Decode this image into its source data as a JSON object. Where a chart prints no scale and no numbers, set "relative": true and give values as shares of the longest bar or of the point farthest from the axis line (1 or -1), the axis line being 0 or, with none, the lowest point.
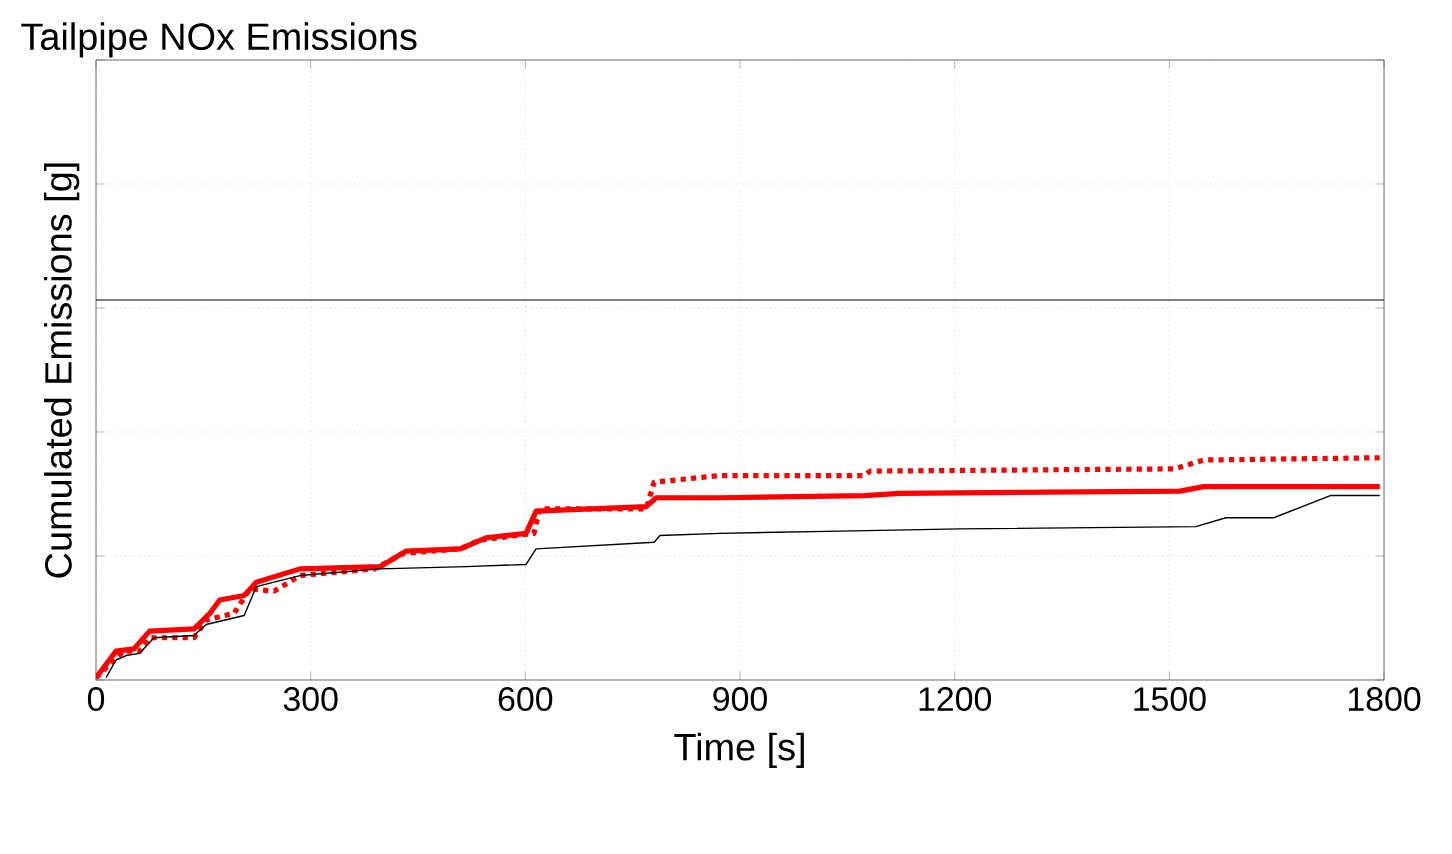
{
  "chart_data": {
    "type": "line",
    "title": "Tailpipe NOx Emissions",
    "xlabel": "Time [s]",
    "ylabel": "Cumulated Emissions [g]",
    "relative": true,
    "xlim": [
      0,
      1800
    ],
    "xticks": [
      0,
      300,
      600,
      900,
      1200,
      1500,
      1800
    ],
    "grid": true,
    "marker": "none",
    "series": [
      {
        "color": "#ff0000",
        "line_style": "solid",
        "x": [
          0,
          28,
          53,
          75,
          137,
          159,
          173,
          207,
          224,
          285,
          397,
          433,
          509,
          545,
          601,
          615,
          769,
          783,
          872,
          1073,
          1124,
          1515,
          1548,
          1683,
          1794
        ],
        "values": [
          0.01,
          0.13,
          0.14,
          0.22,
          0.23,
          0.3,
          0.36,
          0.38,
          0.44,
          0.5,
          0.51,
          0.58,
          0.59,
          0.64,
          0.66,
          0.76,
          0.78,
          0.82,
          0.82,
          0.83,
          0.84,
          0.85,
          0.87,
          0.87,
          0.87
        ]
      },
      {
        "color": "#ff0000",
        "line_style": "dotted",
        "x": [
          0,
          25,
          39,
          61,
          75,
          137,
          154,
          193,
          215,
          249,
          285,
          389,
          430,
          509,
          537,
          612,
          620,
          769,
          780,
          872,
          1073,
          1082,
          1507,
          1548,
          1794
        ],
        "values": [
          0.01,
          0.09,
          0.13,
          0.13,
          0.19,
          0.19,
          0.27,
          0.3,
          0.41,
          0.4,
          0.47,
          0.5,
          0.57,
          0.59,
          0.63,
          0.66,
          0.77,
          0.77,
          0.89,
          0.92,
          0.92,
          0.94,
          0.95,
          0.99,
          1
        ]
      },
      {
        "color": "#000000",
        "line_style": "solid",
        "x": [
          14,
          28,
          42,
          61,
          81,
          137,
          154,
          207,
          224,
          285,
          397,
          517,
          601,
          615,
          780,
          788,
          872,
          1040,
          1207,
          1537,
          1579,
          1646,
          1725,
          1794
        ],
        "values": [
          0.01,
          0.09,
          0.11,
          0.12,
          0.19,
          0.2,
          0.25,
          0.29,
          0.42,
          0.47,
          0.5,
          0.51,
          0.52,
          0.59,
          0.62,
          0.65,
          0.66,
          0.67,
          0.68,
          0.69,
          0.73,
          0.73,
          0.83,
          0.83
        ]
      }
    ],
    "ref_lines": [
      {
        "axis": "y",
        "value": 1.71,
        "color": "#000000"
      }
    ]
  }
}
